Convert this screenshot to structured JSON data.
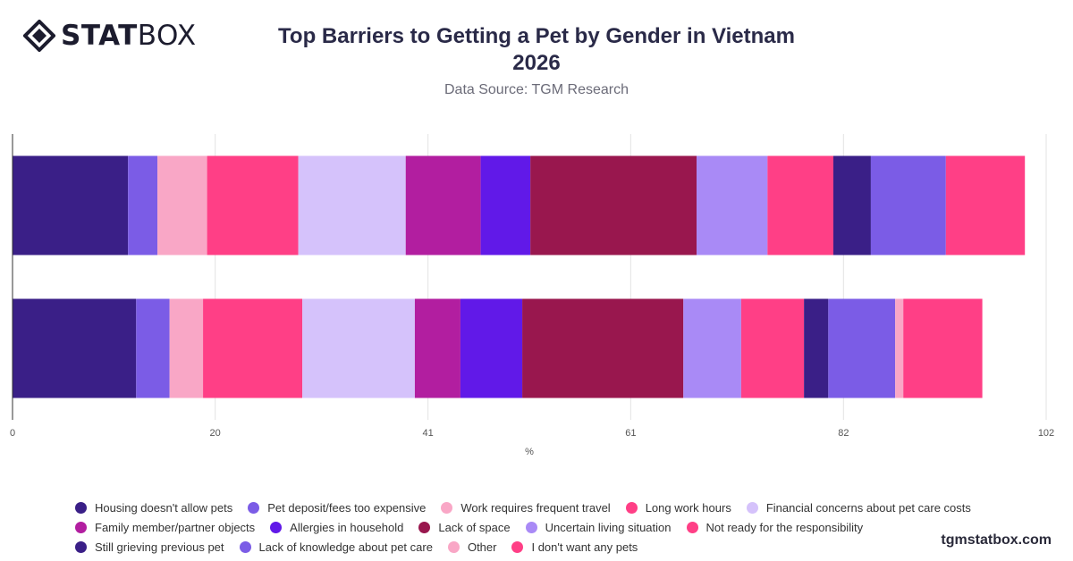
{
  "header": {
    "logo_bold": "STAT",
    "logo_light": "BOX",
    "title_line1": "Top Barriers to Getting a Pet by Gender in Vietnam",
    "title_line2": "2026",
    "subtitle": "Data Source: TGM Research"
  },
  "footer": {
    "site": "tgmstatbox.com"
  },
  "chart_data": {
    "type": "bar",
    "orientation": "horizontal",
    "stacked": true,
    "categories": [
      "",
      ""
    ],
    "xlabel": "%",
    "xlim": [
      0,
      102
    ],
    "xticks": [
      0,
      20,
      41,
      61,
      82,
      102
    ],
    "grid": true,
    "legend_position": "bottom",
    "series": [
      {
        "name": "Housing doesn't allow pets",
        "color": "#3a1f87",
        "values": [
          11.4,
          12.2
        ]
      },
      {
        "name": "Pet deposit/fees too expensive",
        "color": "#7b5ce6",
        "values": [
          2.9,
          3.3
        ]
      },
      {
        "name": "Work requires frequent travel",
        "color": "#f9a7c6",
        "values": [
          4.9,
          3.3
        ]
      },
      {
        "name": "Long work hours",
        "color": "#ff3f86",
        "values": [
          9.0,
          9.8
        ]
      },
      {
        "name": "Financial concerns about pet care costs",
        "color": "#d5c2fb",
        "values": [
          10.6,
          11.1
        ]
      },
      {
        "name": "Family member/partner objects",
        "color": "#b21ea0",
        "values": [
          7.4,
          4.5
        ]
      },
      {
        "name": "Allergies in household",
        "color": "#6119e8",
        "values": [
          4.9,
          6.1
        ]
      },
      {
        "name": "Lack of space",
        "color": "#99174e",
        "values": [
          16.4,
          15.9
        ]
      },
      {
        "name": "Uncertain living situation",
        "color": "#a98af6",
        "values": [
          7.0,
          5.7
        ]
      },
      {
        "name": "Not ready for the responsibility",
        "color": "#ff3f86",
        "values": [
          6.5,
          6.2
        ]
      },
      {
        "name": "Still grieving previous pet",
        "color": "#3a1f87",
        "values": [
          3.7,
          2.4
        ]
      },
      {
        "name": "Lack of knowledge about pet care",
        "color": "#7b5ce6",
        "values": [
          7.4,
          6.6
        ]
      },
      {
        "name": "Other",
        "color": "#f9a7c6",
        "values": [
          0.0,
          0.8
        ]
      },
      {
        "name": "I don't want any pets",
        "color": "#ff3f86",
        "values": [
          7.8,
          7.8
        ]
      }
    ]
  }
}
